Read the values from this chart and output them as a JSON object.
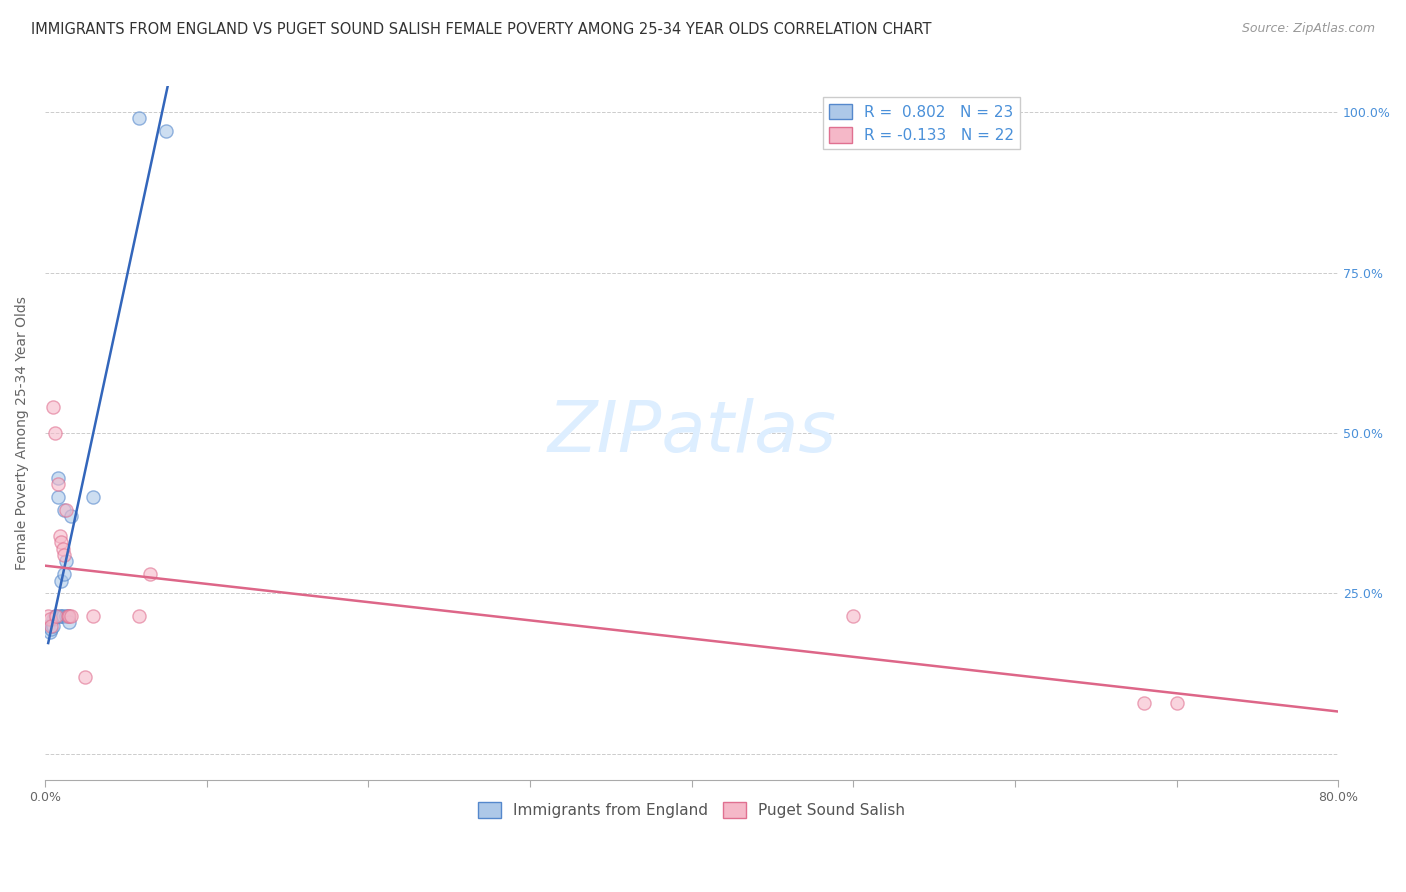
{
  "title": "IMMIGRANTS FROM ENGLAND VS PUGET SOUND SALISH FEMALE POVERTY AMONG 25-34 YEAR OLDS CORRELATION CHART",
  "source": "Source: ZipAtlas.com",
  "ylabel": "Female Poverty Among 25-34 Year Olds",
  "watermark": "ZIPatlas",
  "blue_R": 0.802,
  "blue_N": 23,
  "pink_R": -0.133,
  "pink_N": 22,
  "blue_color": "#adc8e8",
  "pink_color": "#f5b8c8",
  "blue_edge_color": "#5588cc",
  "pink_edge_color": "#e07090",
  "blue_line_color": "#3366bb",
  "pink_line_color": "#dd6688",
  "legend_blue_label": "Immigrants from England",
  "legend_pink_label": "Puget Sound Salish",
  "xlim": [
    0.0,
    0.8
  ],
  "ylim": [
    -0.04,
    1.04
  ],
  "xticks": [
    0.0,
    0.1,
    0.2,
    0.3,
    0.4,
    0.5,
    0.6,
    0.7,
    0.8
  ],
  "xtick_labels": [
    "0.0%",
    "",
    "",
    "",
    "",
    "",
    "",
    "",
    "80.0%"
  ],
  "ytick_positions": [
    0.0,
    0.25,
    0.5,
    0.75,
    1.0
  ],
  "ytick_labels_right": [
    "",
    "25.0%",
    "50.0%",
    "75.0%",
    "100.0%"
  ],
  "blue_scatter_x": [
    0.002,
    0.003,
    0.004,
    0.005,
    0.005,
    0.006,
    0.007,
    0.008,
    0.008,
    0.009,
    0.01,
    0.01,
    0.011,
    0.012,
    0.012,
    0.013,
    0.013,
    0.014,
    0.015,
    0.016,
    0.03,
    0.058,
    0.075
  ],
  "blue_scatter_y": [
    0.2,
    0.19,
    0.195,
    0.21,
    0.2,
    0.215,
    0.215,
    0.43,
    0.4,
    0.215,
    0.215,
    0.27,
    0.215,
    0.38,
    0.28,
    0.215,
    0.3,
    0.215,
    0.205,
    0.37,
    0.4,
    0.99,
    0.97
  ],
  "pink_scatter_x": [
    0.002,
    0.003,
    0.004,
    0.005,
    0.006,
    0.007,
    0.008,
    0.009,
    0.01,
    0.011,
    0.012,
    0.013,
    0.014,
    0.015,
    0.016,
    0.025,
    0.03,
    0.058,
    0.065,
    0.5,
    0.68,
    0.7
  ],
  "pink_scatter_y": [
    0.215,
    0.21,
    0.2,
    0.54,
    0.5,
    0.215,
    0.42,
    0.34,
    0.33,
    0.32,
    0.31,
    0.38,
    0.215,
    0.215,
    0.215,
    0.12,
    0.215,
    0.215,
    0.28,
    0.215,
    0.08,
    0.08
  ],
  "background_color": "#ffffff",
  "grid_color": "#cccccc",
  "title_fontsize": 10.5,
  "source_fontsize": 9,
  "axis_label_fontsize": 10,
  "tick_fontsize": 9,
  "legend_fontsize": 11,
  "watermark_fontsize": 52,
  "watermark_color": "#ddeeff",
  "scatter_size": 90,
  "scatter_alpha": 0.6,
  "scatter_linewidth": 1.0
}
